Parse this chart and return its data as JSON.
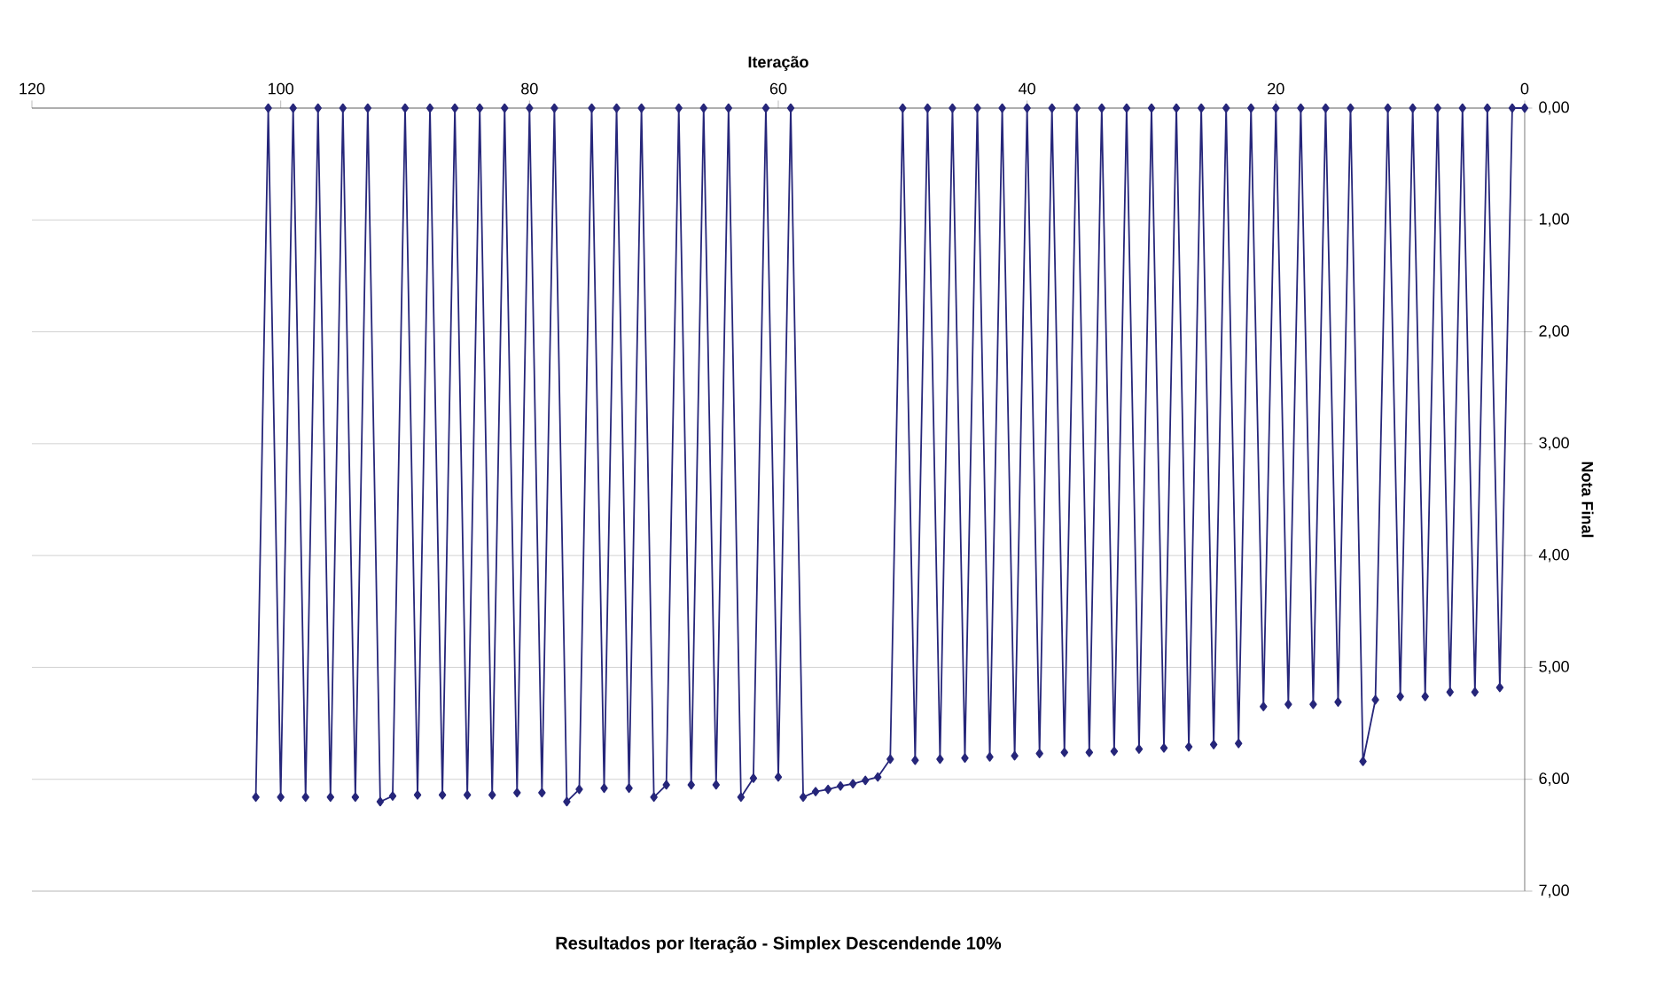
{
  "chart_data": {
    "type": "line",
    "title": "Resultados por Iteração - Simplex Descendende 10%",
    "xlabel": "Iteração",
    "ylabel": "Nota Final",
    "xlim": [
      120,
      0
    ],
    "xticks": [
      0,
      20,
      40,
      60,
      80,
      100,
      120
    ],
    "ylim": [
      7,
      0
    ],
    "yticks": [
      {
        "value": 0,
        "label": "0,00"
      },
      {
        "value": 1,
        "label": "1,00"
      },
      {
        "value": 2,
        "label": "2,00"
      },
      {
        "value": 3,
        "label": "3,00"
      },
      {
        "value": 4,
        "label": "4,00"
      },
      {
        "value": 5,
        "label": "5,00"
      },
      {
        "value": 6,
        "label": "6,00"
      },
      {
        "value": 7,
        "label": "7,00"
      }
    ],
    "grid": "y",
    "marker": "diamond",
    "line_style": "solid",
    "series": [
      {
        "color": "#26267a",
        "x": [
          0,
          1,
          2,
          3,
          4,
          5,
          6,
          7,
          8,
          9,
          10,
          11,
          12,
          13,
          14,
          15,
          16,
          17,
          18,
          19,
          20,
          21,
          22,
          23,
          24,
          25,
          26,
          27,
          28,
          29,
          30,
          31,
          32,
          33,
          34,
          35,
          36,
          37,
          38,
          39,
          40,
          41,
          42,
          43,
          44,
          45,
          46,
          47,
          48,
          49,
          50,
          51,
          52,
          53,
          54,
          55,
          56,
          57,
          58,
          59,
          60,
          61,
          62,
          63,
          64,
          65,
          66,
          67,
          68,
          69,
          70,
          71,
          72,
          73,
          74,
          75,
          76,
          77,
          78,
          79,
          80,
          81,
          82,
          83,
          84,
          85,
          86,
          87,
          88,
          89,
          90,
          91,
          92,
          93,
          94,
          95,
          96,
          97,
          98,
          99,
          100,
          101,
          102
        ],
        "values": [
          0,
          0,
          5.18,
          0,
          5.22,
          0,
          5.22,
          0,
          5.26,
          0,
          5.26,
          0,
          5.29,
          5.84,
          0,
          5.31,
          0,
          5.33,
          0,
          5.33,
          0,
          5.35,
          0,
          5.68,
          0,
          5.69,
          0,
          5.71,
          0,
          5.72,
          0,
          5.73,
          0,
          5.75,
          0,
          5.76,
          0,
          5.76,
          0,
          5.77,
          0,
          5.79,
          0,
          5.8,
          0,
          5.81,
          0,
          5.82,
          0,
          5.83,
          0,
          5.82,
          5.98,
          6.01,
          6.04,
          6.06,
          6.09,
          6.11,
          6.16,
          0,
          5.98,
          0,
          5.99,
          6.16,
          0,
          6.05,
          0,
          6.05,
          0,
          6.05,
          6.16,
          0,
          6.08,
          0,
          6.08,
          0,
          6.09,
          6.2,
          0,
          6.12,
          0,
          6.12,
          0,
          6.14,
          0,
          6.14,
          0,
          6.14,
          0,
          6.14,
          0,
          6.15,
          6.2,
          0,
          6.16,
          0,
          6.16,
          0,
          6.16,
          0,
          6.16,
          0,
          6.16
        ]
      }
    ]
  }
}
